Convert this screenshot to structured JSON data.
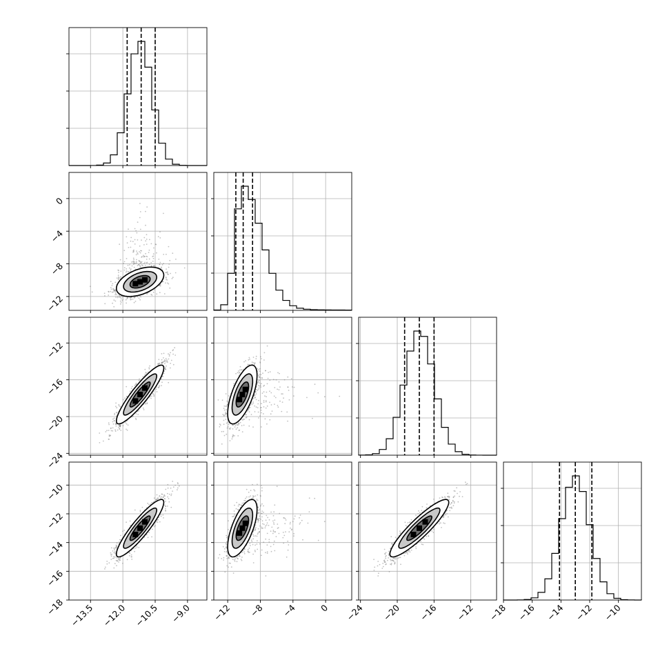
{
  "chart_data": {
    "type": "corner",
    "title": "",
    "params": [
      {
        "range": [
          -14.5,
          -8.1
        ],
        "ticks": [
          -13.5,
          -12.0,
          -10.5,
          -9.0
        ],
        "tick_labels": [
          "−13.5",
          "−12.0",
          "−10.5",
          "−9.0"
        ],
        "mean": -11.2,
        "sigma": 0.55,
        "quantiles": [
          -11.8,
          -11.15,
          -10.5
        ]
      },
      {
        "range": [
          -13.7,
          3.2
        ],
        "ticks": [
          -12,
          -8,
          -4,
          0
        ],
        "tick_labels": [
          "−12",
          "−8",
          "−4",
          "0"
        ],
        "mean": -10.2,
        "sigma": 0.9,
        "quantiles": [
          -11.0,
          -10.1,
          -8.95
        ]
      },
      {
        "range": [
          -24.2,
          -9.2
        ],
        "ticks": [
          -24,
          -20,
          -16,
          -12
        ],
        "tick_labels": [
          "−24",
          "−20",
          "−16",
          "−12"
        ],
        "mean": -17.6,
        "sigma": 1.6,
        "quantiles": [
          -19.2,
          -17.6,
          -16.0
        ]
      },
      {
        "range": [
          -18.0,
          -8.4
        ],
        "ticks": [
          -18,
          -16,
          -14,
          -12,
          -10
        ],
        "tick_labels": [
          "−18",
          "−16",
          "−14",
          "−12",
          "−10"
        ],
        "mean": -13.0,
        "sigma": 1.0,
        "quantiles": [
          -14.1,
          -13.0,
          -11.85
        ]
      }
    ],
    "correlations": {
      "1-0": 0.45,
      "2-0": 0.9,
      "2-1": 0.65,
      "3-0": 0.9,
      "3-1": 0.65,
      "3-2": 0.9
    },
    "grid": true,
    "quantile_lines": "dashed"
  }
}
